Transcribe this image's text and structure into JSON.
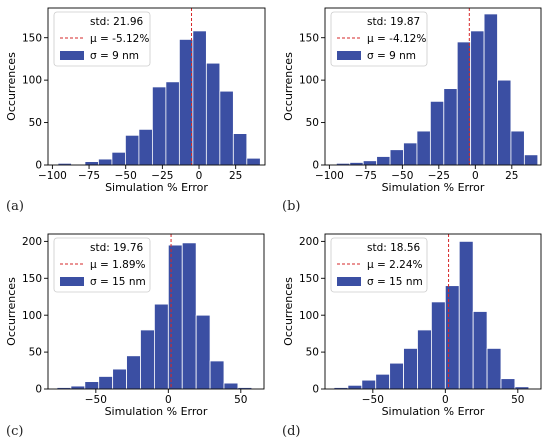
{
  "panel_labels": [
    "(a)",
    "(b)",
    "(c)",
    "(d)"
  ],
  "chart_data": [
    {
      "type": "bar",
      "xlabel": "Simulation % Error",
      "ylabel": "Occurrences",
      "xlim": [
        -103,
        45
      ],
      "ylim": [
        0,
        185
      ],
      "xticks": [
        -100,
        -75,
        -50,
        -25,
        0,
        25
      ],
      "yticks": [
        0,
        50,
        100,
        150
      ],
      "bin_width": 9.2,
      "bin_centers": [
        -91.6,
        -82.4,
        -73.2,
        -64.0,
        -54.8,
        -45.6,
        -36.4,
        -27.2,
        -18.0,
        -8.8,
        0.4,
        9.6,
        18.8,
        28.0,
        37.2
      ],
      "values": [
        2,
        0,
        4,
        7,
        15,
        35,
        42,
        92,
        98,
        148,
        158,
        120,
        87,
        37,
        8
      ],
      "mean_line_x": -5.12,
      "legend": {
        "position": "top-left",
        "std": "std: 21.96",
        "mu": "μ = -5.12%",
        "sigma": "σ = 9 nm"
      }
    },
    {
      "type": "bar",
      "xlabel": "Simulation % Error",
      "ylabel": "Occurrences",
      "xlim": [
        -103,
        45
      ],
      "ylim": [
        0,
        185
      ],
      "xticks": [
        -100,
        -75,
        -50,
        -25,
        0,
        25
      ],
      "yticks": [
        0,
        50,
        100,
        150
      ],
      "bin_width": 9.2,
      "bin_centers": [
        -90.6,
        -81.4,
        -72.2,
        -63.0,
        -53.8,
        -44.6,
        -35.4,
        -26.2,
        -17.0,
        -7.8,
        1.4,
        10.6,
        19.8,
        29.0,
        38.2
      ],
      "values": [
        2,
        3,
        5,
        10,
        18,
        26,
        40,
        75,
        90,
        145,
        158,
        178,
        100,
        40,
        12
      ],
      "mean_line_x": -4.12,
      "legend": {
        "position": "top-left",
        "std": "std: 19.87",
        "mu": "μ = -4.12%",
        "sigma": "σ = 9 nm"
      }
    },
    {
      "type": "bar",
      "xlabel": "Simulation % Error",
      "ylabel": "Occurrences",
      "xlim": [
        -83,
        66
      ],
      "ylim": [
        0,
        210
      ],
      "xticks": [
        -50,
        0,
        50
      ],
      "yticks": [
        0,
        50,
        100,
        150,
        200
      ],
      "bin_width": 9.6,
      "bin_centers": [
        -72.0,
        -62.4,
        -52.8,
        -43.2,
        -33.6,
        -24.0,
        -14.4,
        -4.8,
        4.8,
        14.4,
        24.0,
        33.6,
        43.2,
        52.8
      ],
      "values": [
        2,
        4,
        10,
        17,
        27,
        45,
        80,
        115,
        195,
        198,
        100,
        38,
        8,
        2
      ],
      "mean_line_x": 1.89,
      "legend": {
        "position": "top-left",
        "std": "std: 19.76",
        "mu": "μ = 1.89%",
        "sigma": "σ = 15 nm"
      }
    },
    {
      "type": "bar",
      "xlabel": "Simulation % Error",
      "ylabel": "Occurrences",
      "xlim": [
        -83,
        66
      ],
      "ylim": [
        0,
        210
      ],
      "xticks": [
        -50,
        0,
        50
      ],
      "yticks": [
        0,
        50,
        100,
        150,
        200
      ],
      "bin_width": 9.6,
      "bin_centers": [
        -72.0,
        -62.4,
        -52.8,
        -43.2,
        -33.6,
        -24.0,
        -14.4,
        -4.8,
        4.8,
        14.4,
        24.0,
        33.6,
        43.2,
        52.8
      ],
      "values": [
        2,
        5,
        12,
        20,
        35,
        55,
        80,
        118,
        140,
        200,
        105,
        55,
        14,
        3
      ],
      "mean_line_x": 2.24,
      "legend": {
        "position": "top-left",
        "std": "std: 18.56",
        "mu": "μ = 2.24%",
        "sigma": "σ = 15 nm"
      }
    }
  ],
  "colors": {
    "bar": "#3b4fa3",
    "bar_edge": "#ffffff",
    "mean_line": "#d62728",
    "axis": "#000000"
  }
}
